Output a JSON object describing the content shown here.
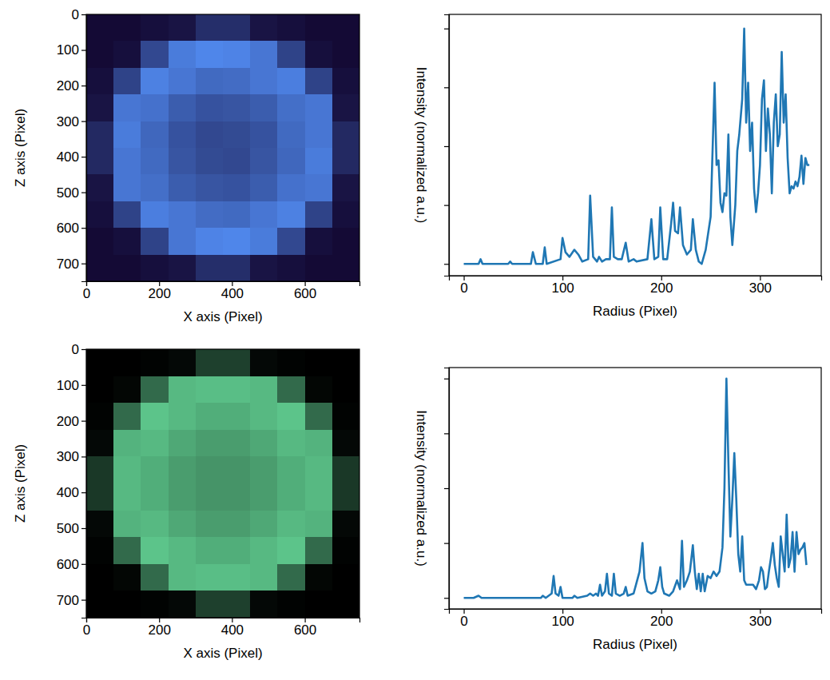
{
  "chart_data": [
    {
      "type": "heatmap",
      "x_label": "X axis (Pixel)",
      "y_label": "Z axis (Pixel)",
      "xlim": [
        0,
        750
      ],
      "ylim": [
        750,
        0
      ],
      "xticks": [
        0,
        200,
        400,
        600
      ],
      "yticks": [
        0,
        100,
        200,
        300,
        400,
        500,
        600,
        700
      ],
      "cells": [
        [
          0.18,
          0.18,
          0.2,
          0.22,
          0.32,
          0.32,
          0.22,
          0.2,
          0.18,
          0.18
        ],
        [
          0.18,
          0.2,
          0.42,
          0.62,
          0.66,
          0.65,
          0.6,
          0.4,
          0.2,
          0.18
        ],
        [
          0.2,
          0.4,
          0.64,
          0.6,
          0.55,
          0.56,
          0.6,
          0.63,
          0.4,
          0.2
        ],
        [
          0.22,
          0.6,
          0.58,
          0.5,
          0.46,
          0.47,
          0.5,
          0.57,
          0.6,
          0.22
        ],
        [
          0.3,
          0.62,
          0.54,
          0.46,
          0.42,
          0.43,
          0.46,
          0.55,
          0.6,
          0.3
        ],
        [
          0.3,
          0.6,
          0.55,
          0.47,
          0.43,
          0.42,
          0.47,
          0.54,
          0.62,
          0.3
        ],
        [
          0.22,
          0.6,
          0.57,
          0.5,
          0.47,
          0.46,
          0.5,
          0.58,
          0.6,
          0.22
        ],
        [
          0.2,
          0.4,
          0.63,
          0.6,
          0.56,
          0.55,
          0.6,
          0.64,
          0.4,
          0.2
        ],
        [
          0.18,
          0.2,
          0.4,
          0.6,
          0.65,
          0.66,
          0.62,
          0.42,
          0.2,
          0.18
        ],
        [
          0.18,
          0.18,
          0.2,
          0.22,
          0.32,
          0.32,
          0.22,
          0.2,
          0.18,
          0.18
        ]
      ]
    },
    {
      "type": "line",
      "x_label": "Radius (Pixel)",
      "y_label": "Intensity (normalized a.u.)",
      "xlim": [
        -15,
        362
      ],
      "ylim": [
        -0.05,
        1.06
      ],
      "xticks": [
        0,
        100,
        200,
        300
      ],
      "yticks": [
        0,
        0.25,
        0.5,
        0.75,
        1.0
      ],
      "tick_labels": "x",
      "color": "#1f77b4",
      "x": [
        0,
        15,
        17,
        19,
        45,
        47,
        49,
        68,
        70,
        73,
        80,
        82,
        84,
        98,
        100,
        103,
        107,
        112,
        116,
        120,
        126,
        128,
        131,
        135,
        137,
        140,
        144,
        148,
        150,
        152,
        156,
        160,
        164,
        167,
        172,
        175,
        186,
        190,
        193,
        197,
        199,
        202,
        206,
        210,
        212,
        214,
        217,
        219,
        222,
        226,
        230,
        232,
        235,
        238,
        241,
        245,
        250,
        254,
        256,
        258,
        260,
        262,
        264,
        266,
        268,
        270,
        272,
        275,
        277,
        279,
        282,
        284,
        286,
        288,
        290,
        292,
        294,
        296,
        298,
        300,
        302,
        304,
        306,
        308,
        310,
        312,
        314,
        316,
        318,
        320,
        322,
        324,
        326,
        328,
        330,
        332,
        334,
        336,
        338,
        340,
        342,
        344,
        346,
        348,
        350
      ],
      "values": [
        0,
        0,
        0.02,
        0,
        0,
        0.01,
        0,
        0,
        0.05,
        0,
        0,
        0.07,
        0,
        0.02,
        0.11,
        0.05,
        0.03,
        0.06,
        0.04,
        0.01,
        0.02,
        0.29,
        0.03,
        0.01,
        0.03,
        0.01,
        0.02,
        0.02,
        0.24,
        0.03,
        0.02,
        0.02,
        0.09,
        0.01,
        0.02,
        0.01,
        0.02,
        0.19,
        0.02,
        0.03,
        0.24,
        0.02,
        0.02,
        0.17,
        0.26,
        0.14,
        0.13,
        0.24,
        0.08,
        0.04,
        0.06,
        0.19,
        0.06,
        0.01,
        0,
        0.06,
        0.2,
        0.77,
        0.42,
        0.44,
        0.26,
        0.22,
        0.3,
        0.29,
        0.55,
        0.2,
        0.08,
        0.25,
        0.48,
        0.55,
        0.7,
        1.0,
        0.6,
        0.77,
        0.48,
        0.6,
        0.32,
        0.22,
        0.3,
        0.42,
        0.7,
        0.78,
        0.48,
        0.66,
        0.55,
        0.3,
        0.6,
        0.72,
        0.5,
        0.55,
        0.9,
        0.6,
        0.72,
        0.45,
        0.3,
        0.33,
        0.32,
        0.35,
        0.33,
        0.37,
        0.46,
        0.34,
        0.45,
        0.42,
        0.42
      ]
    },
    {
      "type": "heatmap",
      "x_label": "X axis (Pixel)",
      "y_label": "Z axis (Pixel)",
      "xlim": [
        0,
        750
      ],
      "ylim": [
        750,
        0
      ],
      "xticks": [
        0,
        200,
        400,
        600
      ],
      "yticks": [
        0,
        100,
        200,
        300,
        400,
        500,
        600,
        700
      ],
      "cells": [
        [
          0.02,
          0.02,
          0.03,
          0.05,
          0.25,
          0.25,
          0.05,
          0.03,
          0.02,
          0.02
        ],
        [
          0.02,
          0.04,
          0.4,
          0.68,
          0.7,
          0.7,
          0.68,
          0.4,
          0.04,
          0.02
        ],
        [
          0.03,
          0.4,
          0.72,
          0.68,
          0.64,
          0.64,
          0.68,
          0.72,
          0.4,
          0.03
        ],
        [
          0.05,
          0.66,
          0.68,
          0.62,
          0.58,
          0.58,
          0.62,
          0.68,
          0.66,
          0.05
        ],
        [
          0.22,
          0.68,
          0.64,
          0.58,
          0.55,
          0.55,
          0.58,
          0.64,
          0.68,
          0.22
        ],
        [
          0.22,
          0.68,
          0.64,
          0.58,
          0.55,
          0.55,
          0.58,
          0.64,
          0.68,
          0.22
        ],
        [
          0.05,
          0.66,
          0.68,
          0.62,
          0.58,
          0.58,
          0.62,
          0.68,
          0.66,
          0.05
        ],
        [
          0.03,
          0.4,
          0.72,
          0.68,
          0.64,
          0.64,
          0.68,
          0.72,
          0.4,
          0.03
        ],
        [
          0.02,
          0.04,
          0.4,
          0.68,
          0.7,
          0.7,
          0.68,
          0.4,
          0.04,
          0.02
        ],
        [
          0.02,
          0.02,
          0.03,
          0.05,
          0.25,
          0.25,
          0.05,
          0.03,
          0.02,
          0.02
        ]
      ]
    },
    {
      "type": "line",
      "x_label": "Radius (Pixel)",
      "y_label": "Intensity (normalized a.u.)",
      "xlim": [
        -15,
        362
      ],
      "ylim": [
        -0.05,
        1.05
      ],
      "xticks": [
        0,
        100,
        200,
        300
      ],
      "yticks": [
        0,
        0.25,
        0.5,
        0.75,
        1.0
      ],
      "tick_labels": "x",
      "color": "#1f77b4",
      "x": [
        0,
        10,
        15,
        18,
        40,
        78,
        80,
        83,
        89,
        91,
        93,
        96,
        98,
        100,
        110,
        112,
        115,
        125,
        128,
        131,
        134,
        136,
        138,
        140,
        143,
        145,
        147,
        150,
        152,
        154,
        158,
        162,
        164,
        166,
        172,
        175,
        178,
        181,
        183,
        186,
        190,
        194,
        197,
        199,
        201,
        203,
        208,
        212,
        216,
        219,
        221,
        223,
        226,
        229,
        232,
        234,
        236,
        238,
        240,
        242,
        244,
        247,
        250,
        253,
        256,
        259,
        262,
        264,
        266,
        268,
        270,
        272,
        274,
        276,
        278,
        280,
        282,
        284,
        286,
        290,
        293,
        296,
        299,
        301,
        303,
        305,
        307,
        309,
        311,
        313,
        315,
        317,
        319,
        321,
        323,
        325,
        327,
        329,
        331,
        333,
        335,
        337,
        339,
        341,
        343,
        345,
        347
      ],
      "values": [
        0,
        0,
        0.01,
        0,
        0,
        0,
        0.01,
        0,
        0.02,
        0.1,
        0.02,
        0.01,
        0.05,
        0,
        0,
        0.01,
        0,
        0.01,
        0.02,
        0.01,
        0.02,
        0.01,
        0.06,
        0.01,
        0.03,
        0.11,
        0.02,
        0.01,
        0.11,
        0.02,
        0.01,
        0.02,
        0.05,
        0.01,
        0.02,
        0.07,
        0.12,
        0.25,
        0.09,
        0.03,
        0.02,
        0.03,
        0.08,
        0.14,
        0.05,
        0.02,
        0.01,
        0.03,
        0.08,
        0.04,
        0.26,
        0.05,
        0.08,
        0.12,
        0.24,
        0.12,
        0.04,
        0.11,
        0.03,
        0.11,
        0.03,
        0.1,
        0.09,
        0.12,
        0.1,
        0.12,
        0.23,
        0.5,
        1.0,
        0.62,
        0.28,
        0.45,
        0.66,
        0.45,
        0.2,
        0.12,
        0.28,
        0.08,
        0.06,
        0.06,
        0.06,
        0.04,
        0.08,
        0.14,
        0.12,
        0.04,
        0.05,
        0.12,
        0.18,
        0.25,
        0.15,
        0.09,
        0.05,
        0.28,
        0.2,
        0.12,
        0.38,
        0.14,
        0.18,
        0.3,
        0.12,
        0.3,
        0.2,
        0.22,
        0.23,
        0.25,
        0.15
      ]
    }
  ]
}
